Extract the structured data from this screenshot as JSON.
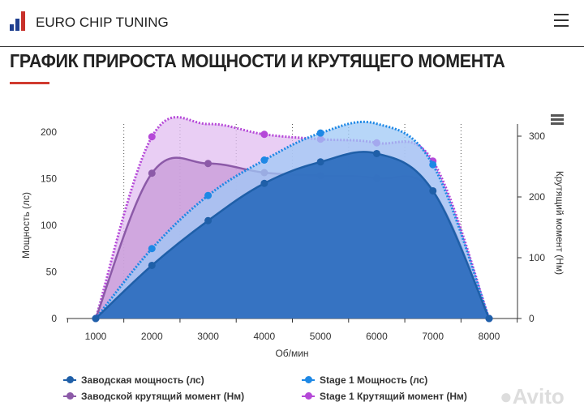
{
  "header": {
    "brand": "EURO CHIP TUNING"
  },
  "page_title": "ГРАФИК ПРИРОСТА МОЩНОСТИ И КРУТЯЩЕГО МОМЕНТА",
  "watermark": "Avito",
  "chart_data": {
    "type": "area",
    "xlabel": "Об/мин",
    "ylabel_left": "Мощность (лс)",
    "ylabel_right": "Крутящий момент (Нм)",
    "x": [
      1000,
      2000,
      3000,
      4000,
      5000,
      6000,
      7000,
      8000
    ],
    "x_ticks": [
      "1000",
      "2000",
      "3000",
      "4000",
      "5000",
      "6000",
      "7000",
      "8000"
    ],
    "y_left_ticks": [
      "0",
      "50",
      "100",
      "150",
      "200"
    ],
    "y_right_ticks": [
      "0",
      "100",
      "200",
      "300"
    ],
    "ylim_left": [
      0,
      200
    ],
    "ylim_right": [
      0,
      300
    ],
    "grid": "vertical dotted",
    "legend_placement": "bottom",
    "series": [
      {
        "name": "Stage 1 Крутящий момент (Нм)",
        "axis": "right",
        "style": "dotted",
        "color": "#b548d8",
        "fill": "#e2bdf0",
        "values": [
          0,
          299,
          320,
          303,
          295,
          289,
          259,
          0
        ]
      },
      {
        "name": "Заводской крутящий момент (Нм)",
        "axis": "right",
        "style": "solid",
        "color": "#8c5aa8",
        "fill": "#c79ad8",
        "values": [
          0,
          239,
          255,
          240,
          235,
          231,
          209,
          0
        ]
      },
      {
        "name": "Stage 1 Мощность (лс)",
        "axis": "left",
        "style": "dotted",
        "color": "#1e88e5",
        "fill": "#9fc8f5",
        "values": [
          0,
          75,
          132,
          170,
          199,
          209,
          165,
          0
        ]
      },
      {
        "name": "Заводская мощность (лс)",
        "axis": "left",
        "style": "solid",
        "color": "#1f5fa8",
        "fill": "#2f6fbf",
        "values": [
          0,
          57,
          105,
          145,
          168,
          177,
          137,
          0
        ]
      }
    ],
    "legend": [
      {
        "label": "Заводская мощность (лс)",
        "color": "#1f5fa8"
      },
      {
        "label": "Stage 1 Мощность (лс)",
        "color": "#1e88e5"
      },
      {
        "label": "Заводской крутящий момент (Нм)",
        "color": "#8c5aa8"
      },
      {
        "label": "Stage 1 Крутящий момент (Нм)",
        "color": "#b548d8"
      }
    ]
  }
}
